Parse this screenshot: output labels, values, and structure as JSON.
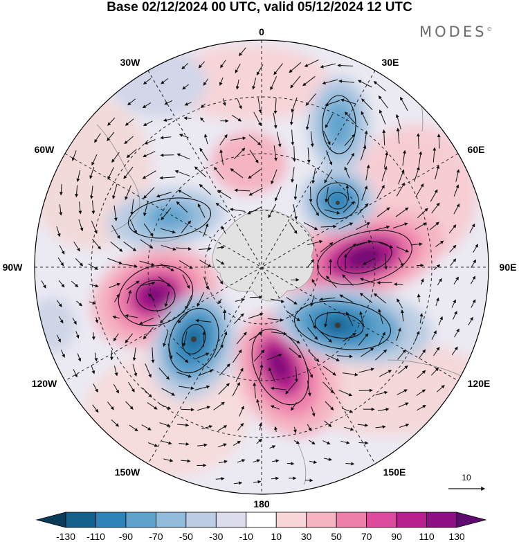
{
  "title": "Base 02/12/2024 00 UTC, valid 05/12/2024 12 UTC",
  "brand": "MODES",
  "brand_mark": "©",
  "map": {
    "projection": "south-polar-stereographic",
    "longitude_labels": {
      "top": "0",
      "top_right": "30E",
      "right_upper": "60E",
      "right": "90E",
      "right_lower": "120E",
      "bottom_right": "150E",
      "bottom": "180",
      "bottom_left": "150W",
      "left_lower": "120W",
      "left": "90W",
      "left_upper": "60W",
      "top_left": "30W"
    },
    "vector_reference": "10",
    "features": [
      "graticule",
      "coastlines",
      "wind-vectors",
      "contour-lines"
    ],
    "anomaly_centers": [
      {
        "sign": "negative",
        "level": "strong"
      },
      {
        "sign": "negative",
        "level": "strong"
      },
      {
        "sign": "negative",
        "level": "strong"
      },
      {
        "sign": "negative",
        "level": "moderate"
      },
      {
        "sign": "negative",
        "level": "moderate"
      },
      {
        "sign": "positive",
        "level": "strong"
      },
      {
        "sign": "positive",
        "level": "strong"
      },
      {
        "sign": "positive",
        "level": "strong"
      },
      {
        "sign": "positive",
        "level": "weak"
      }
    ]
  },
  "colorbar": {
    "tick_labels": [
      "-130",
      "-110",
      "-90",
      "-70",
      "-50",
      "-30",
      "-10",
      "10",
      "30",
      "50",
      "70",
      "90",
      "110",
      "130"
    ],
    "colors": [
      "#0a3c5a",
      "#145f8c",
      "#2e83b8",
      "#5fa3cd",
      "#93bcdc",
      "#bccde3",
      "#dcdcec",
      "#ffffff",
      "#f9d6d8",
      "#f5b4c2",
      "#ee7fab",
      "#dd4b9c",
      "#b81f8e",
      "#8c0f83",
      "#5e0a6e"
    ]
  }
}
